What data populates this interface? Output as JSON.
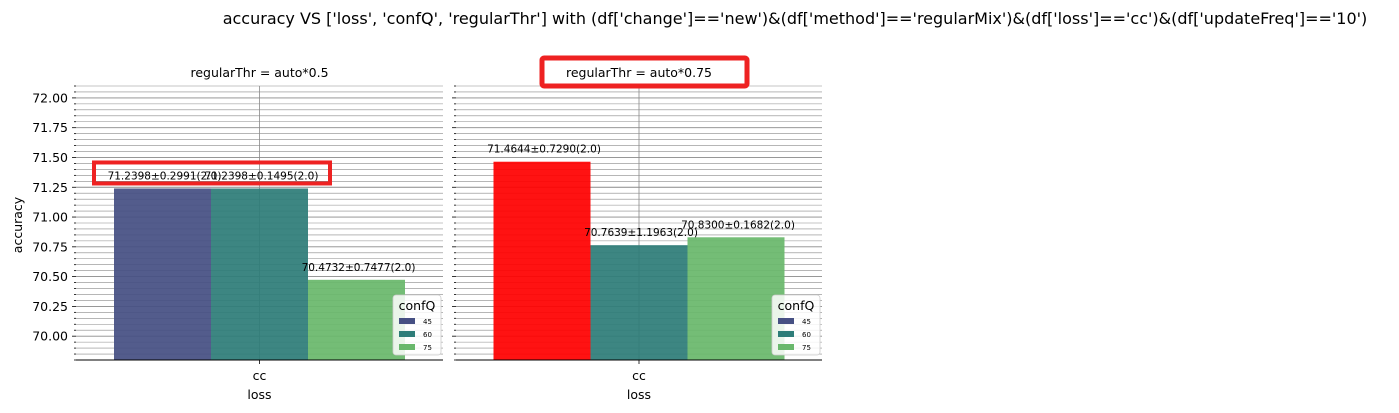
{
  "title": "accuracy VS ['loss', 'confQ', 'regularThr'] with (df['change']=='new')&(df['method']=='regularMix')&(df['loss']=='cc')&(df['updateFreq']=='10')",
  "colors": {
    "45": "#465083",
    "60": "#2e7d79",
    "75": "#69b86c",
    "highlight_bar": "#ff0000",
    "highlight_box": "#ee2222",
    "grid": "#8a8a8a"
  },
  "chart_data": [
    {
      "type": "bar",
      "title": "regularThr = auto*0.5",
      "xlabel": "loss",
      "ylabel": "accuracy",
      "categories": [
        "cc"
      ],
      "ylim": [
        69.8,
        72.1
      ],
      "yticks": [
        "70.00",
        "70.25",
        "70.50",
        "70.75",
        "71.00",
        "71.25",
        "71.50",
        "71.75",
        "72.00"
      ],
      "grid": true,
      "legend": {
        "title": "confQ",
        "placement": "lower-right",
        "entries": [
          "45",
          "60",
          "75"
        ]
      },
      "series": [
        {
          "name": "45",
          "values": [
            71.2398
          ],
          "label": "71.2398±0.2991(2.0)"
        },
        {
          "name": "60",
          "values": [
            71.2398
          ],
          "label": "71.2398±0.1495(2.0)"
        },
        {
          "name": "75",
          "values": [
            70.4732
          ],
          "label": "70.4732±0.7477(2.0)"
        }
      ],
      "highlight_max_bar": false,
      "title_highlighted": false,
      "labels_highlighted": true
    },
    {
      "type": "bar",
      "title": "regularThr = auto*0.75",
      "xlabel": "loss",
      "ylabel": "",
      "categories": [
        "cc"
      ],
      "ylim": [
        69.8,
        72.1
      ],
      "yticks": [],
      "grid": true,
      "legend": {
        "title": "confQ",
        "placement": "lower-right",
        "entries": [
          "45",
          "60",
          "75"
        ]
      },
      "series": [
        {
          "name": "45",
          "values": [
            71.4644
          ],
          "label": "71.4644±0.7290(2.0)"
        },
        {
          "name": "60",
          "values": [
            70.7639
          ],
          "label": "70.7639±1.1963(2.0)"
        },
        {
          "name": "75",
          "values": [
            70.83
          ],
          "label": "70.8300±0.1682(2.0)"
        }
      ],
      "highlight_max_bar": true,
      "title_highlighted": true,
      "labels_highlighted": false
    }
  ]
}
